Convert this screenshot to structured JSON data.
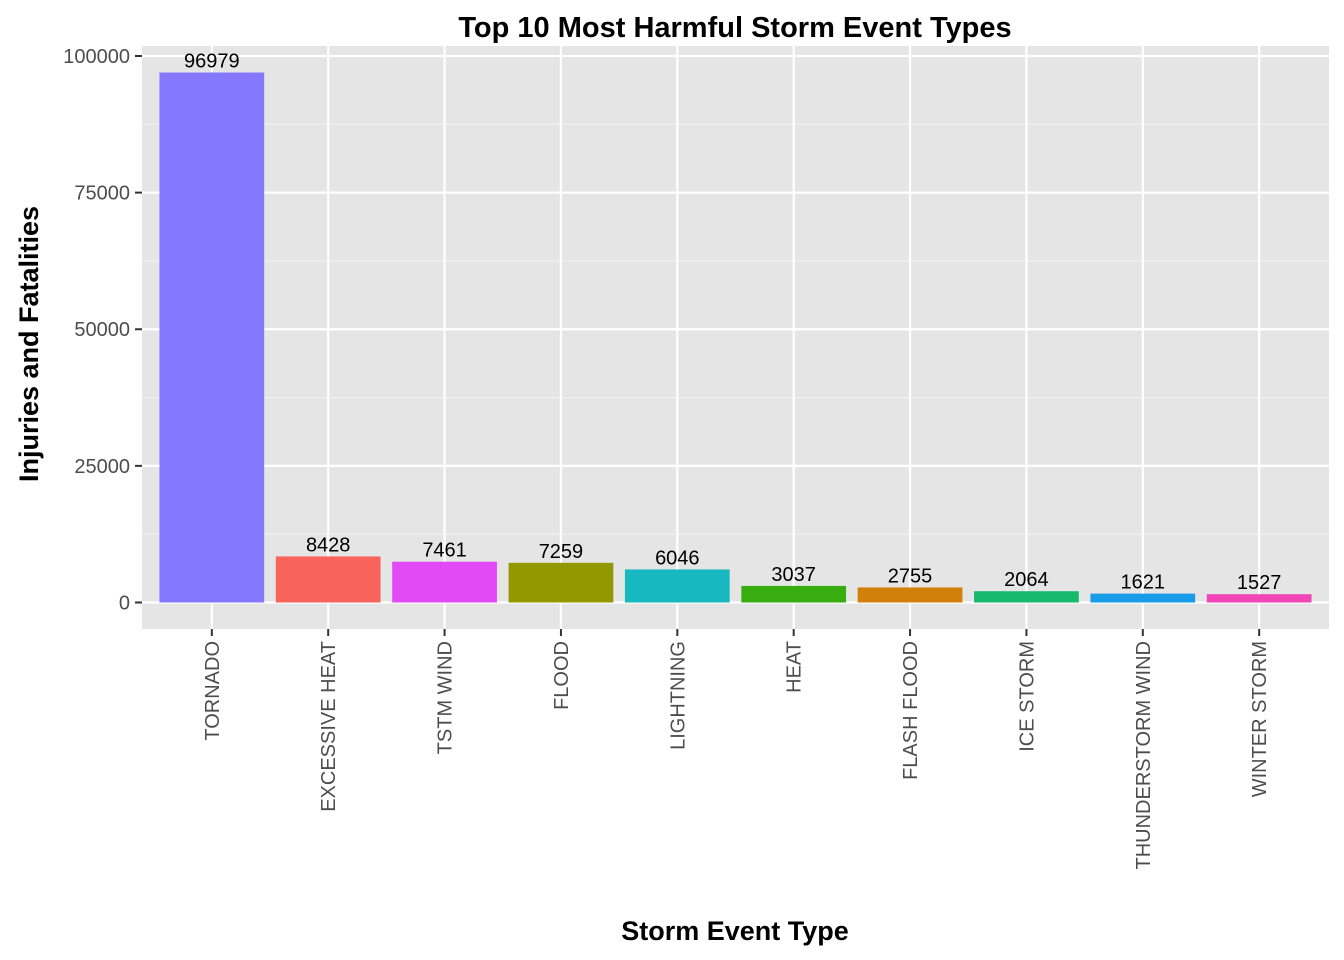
{
  "chart_data": {
    "type": "bar",
    "title": "Top 10 Most Harmful Storm Event Types",
    "xlabel": "Storm Event Type",
    "ylabel": "Injuries and Fatalities",
    "categories": [
      "TORNADO",
      "EXCESSIVE HEAT",
      "TSTM WIND",
      "FLOOD",
      "LIGHTNING",
      "HEAT",
      "FLASH FLOOD",
      "ICE STORM",
      "THUNDERSTORM WIND",
      "WINTER STORM"
    ],
    "values": [
      96979,
      8428,
      7461,
      7259,
      6046,
      3037,
      2755,
      2064,
      1621,
      1527
    ],
    "data_labels": [
      "96979",
      "8428",
      "7461",
      "7259",
      "6046",
      "3037",
      "2755",
      "2064",
      "1621",
      "1527"
    ],
    "colors": [
      "#8478FF",
      "#F8645B",
      "#E24AF5",
      "#949800",
      "#17B8C0",
      "#37AD10",
      "#D1800A",
      "#16B96D",
      "#189CE8",
      "#F046B7"
    ],
    "yticks": [
      0,
      25000,
      50000,
      75000,
      100000
    ],
    "ytick_labels": [
      "0",
      "25000",
      "50000",
      "75000",
      "100000"
    ],
    "ylim": [
      -4849,
      101828
    ],
    "grid": true,
    "panel_background": "#E5E5E5",
    "legend": "none"
  }
}
